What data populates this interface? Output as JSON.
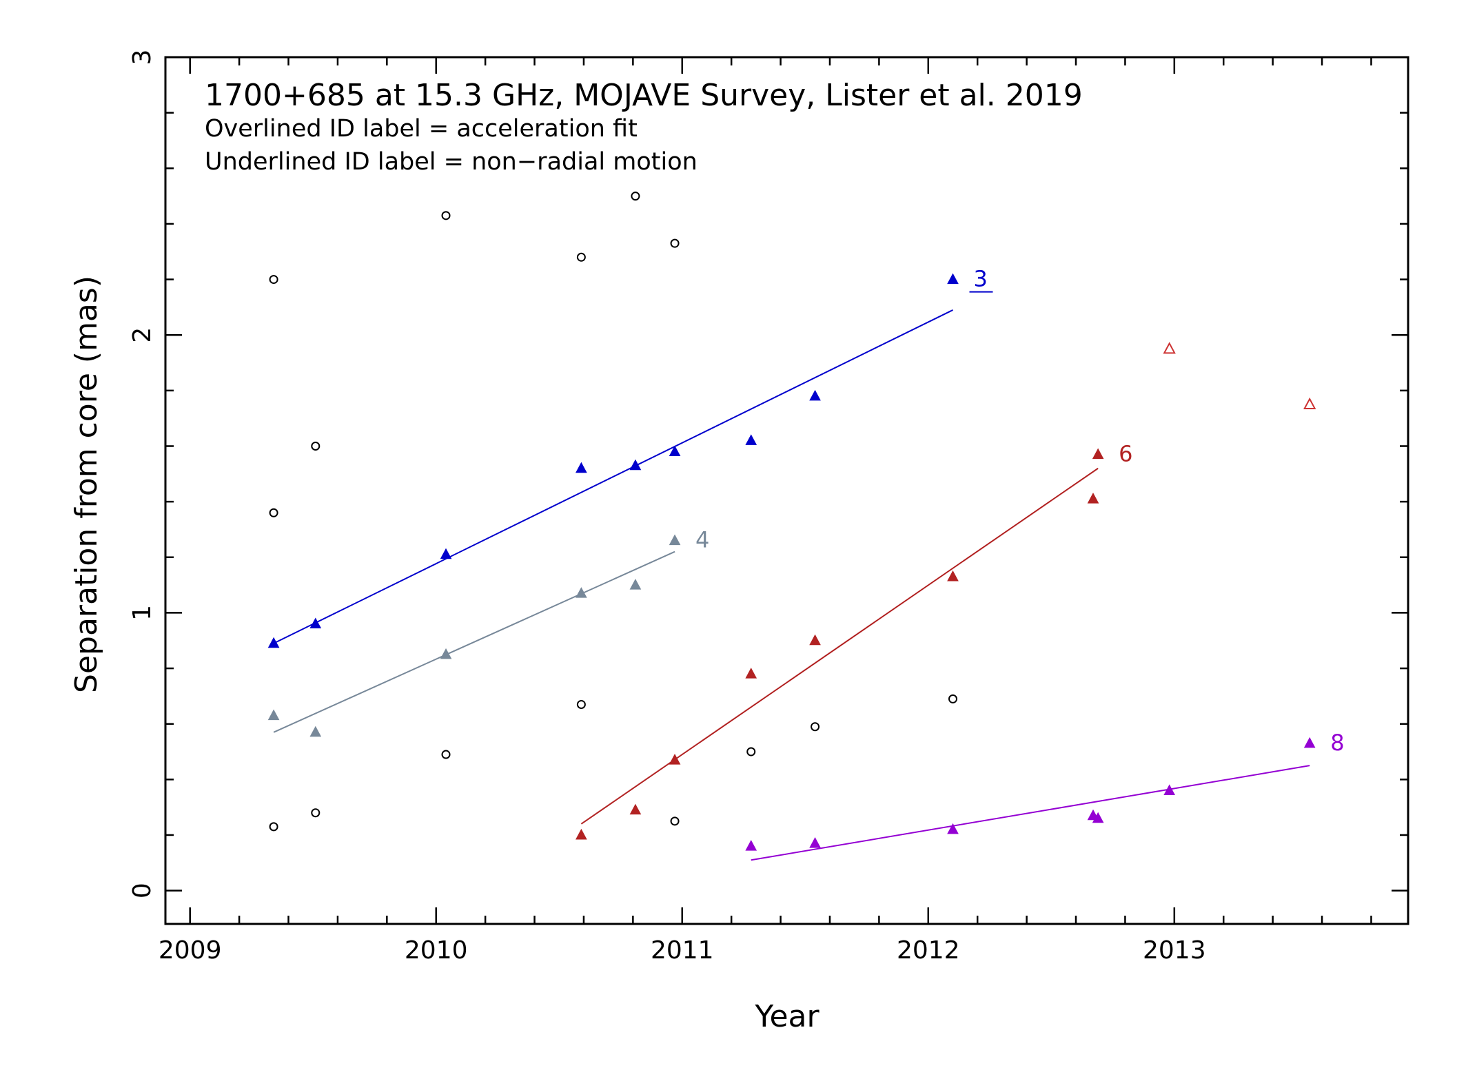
{
  "chart_data": {
    "type": "scatter",
    "title": "1700+685 at 15.3 GHz, MOJAVE Survey, Lister et al. 2019",
    "notes": [
      "Overlined ID label = acceleration fit",
      "Underlined ID label = non−radial motion"
    ],
    "xlabel": "Year",
    "ylabel": "Separation from core (mas)",
    "xlim": [
      2008.9,
      2013.95
    ],
    "ylim": [
      -0.12,
      3.0
    ],
    "x_ticks": [
      2009,
      2010,
      2011,
      2012,
      2013
    ],
    "x_tick_labels": [
      "2009",
      "2010",
      "2011",
      "2012",
      "2013"
    ],
    "y_ticks": [
      0,
      1,
      2,
      3
    ],
    "y_tick_labels": [
      "0",
      "1",
      "2",
      "3"
    ],
    "x_minor_step": 0.2,
    "y_minor_step": 0.2,
    "grid": false,
    "series": [
      {
        "name": "3",
        "label_underlined": true,
        "color": "#0000cc",
        "marker": "filled-triangle",
        "points": [
          [
            2009.34,
            0.89
          ],
          [
            2009.51,
            0.96
          ],
          [
            2010.04,
            1.21
          ],
          [
            2010.59,
            1.52
          ],
          [
            2010.81,
            1.53
          ],
          [
            2010.97,
            1.58
          ],
          [
            2011.28,
            1.62
          ],
          [
            2011.54,
            1.78
          ],
          [
            2012.1,
            2.2
          ]
        ],
        "fit": [
          [
            2009.34,
            0.89
          ],
          [
            2012.1,
            2.09
          ]
        ]
      },
      {
        "name": "4",
        "label_underlined": false,
        "color": "#778899",
        "marker": "filled-triangle",
        "points": [
          [
            2009.34,
            0.63
          ],
          [
            2009.51,
            0.57
          ],
          [
            2010.04,
            0.85
          ],
          [
            2010.59,
            1.07
          ],
          [
            2010.81,
            1.1
          ],
          [
            2010.97,
            1.26
          ]
        ],
        "fit": [
          [
            2009.34,
            0.57
          ],
          [
            2010.97,
            1.22
          ]
        ]
      },
      {
        "name": "6",
        "label_underlined": false,
        "color": "#b22222",
        "marker": "filled-triangle",
        "points": [
          [
            2010.59,
            0.2
          ],
          [
            2010.81,
            0.29
          ],
          [
            2010.97,
            0.47
          ],
          [
            2011.28,
            0.78
          ],
          [
            2011.54,
            0.9
          ],
          [
            2012.1,
            1.13
          ],
          [
            2012.67,
            1.41
          ],
          [
            2012.69,
            1.57
          ]
        ],
        "fit": [
          [
            2010.59,
            0.24
          ],
          [
            2012.69,
            1.52
          ]
        ]
      },
      {
        "name": "8",
        "label_underlined": false,
        "color": "#9400d3",
        "marker": "filled-triangle",
        "points": [
          [
            2011.28,
            0.16
          ],
          [
            2011.54,
            0.17
          ],
          [
            2012.1,
            0.22
          ],
          [
            2012.67,
            0.27
          ],
          [
            2012.69,
            0.26
          ],
          [
            2012.98,
            0.36
          ],
          [
            2013.55,
            0.53
          ]
        ],
        "fit": [
          [
            2011.28,
            0.11
          ],
          [
            2013.55,
            0.45
          ]
        ]
      },
      {
        "name": "",
        "color": "#cd3333",
        "marker": "open-triangle",
        "points": [
          [
            2012.98,
            1.95
          ],
          [
            2013.55,
            1.75
          ]
        ]
      },
      {
        "name": "",
        "color": "#000000",
        "marker": "open-circle",
        "points": [
          [
            2009.34,
            2.2
          ],
          [
            2009.34,
            1.36
          ],
          [
            2009.34,
            0.23
          ],
          [
            2009.51,
            1.6
          ],
          [
            2009.51,
            0.28
          ],
          [
            2010.04,
            2.43
          ],
          [
            2010.04,
            0.49
          ],
          [
            2010.59,
            2.28
          ],
          [
            2010.59,
            0.67
          ],
          [
            2010.81,
            2.5
          ],
          [
            2010.97,
            2.33
          ],
          [
            2010.97,
            0.25
          ],
          [
            2011.28,
            0.5
          ],
          [
            2011.54,
            0.59
          ],
          [
            2012.1,
            0.69
          ]
        ]
      }
    ]
  }
}
